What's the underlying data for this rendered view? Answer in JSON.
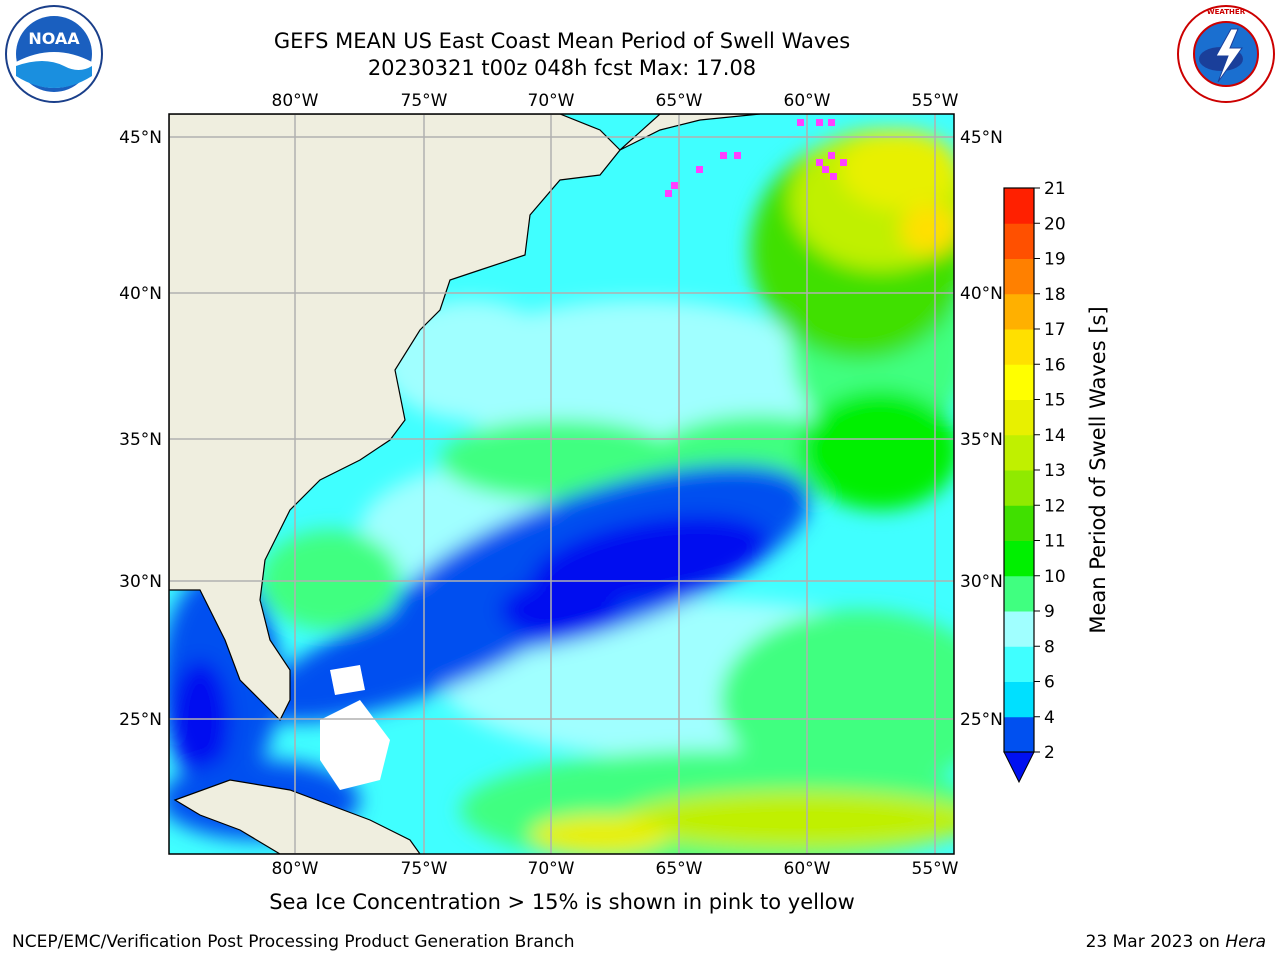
{
  "title": {
    "line1": "GEFS MEAN US East Coast Mean Period of Swell Waves",
    "line2": "20230321 t00z 048h fcst   Max: 17.08"
  },
  "logos": {
    "left": {
      "icon": "noaa-logo",
      "text": "NOAA"
    },
    "right": {
      "icon": "nws-logo",
      "text": "NATIONAL WEATHER SERVICE"
    }
  },
  "map": {
    "lon_labels": [
      "80°W",
      "75°W",
      "70°W",
      "65°W",
      "60°W",
      "55°W"
    ],
    "lat_labels": [
      "45°N",
      "40°N",
      "35°N",
      "30°N",
      "25°N"
    ],
    "extent": {
      "lon": [
        -85,
        -54.5
      ],
      "lat": [
        20.5,
        46
      ]
    },
    "land_color": "#efeedf",
    "grid_color": "#b0b0b0"
  },
  "colorbar": {
    "title": "Mean Period of Swell Waves [s]",
    "ticks": [
      "2",
      "4",
      "6",
      "8",
      "9",
      "10",
      "11",
      "12",
      "13",
      "14",
      "15",
      "16",
      "17",
      "18",
      "19",
      "20",
      "21"
    ],
    "colors": [
      "#0050f0",
      "#00e0ff",
      "#40ffff",
      "#a0ffff",
      "#40ff80",
      "#00f000",
      "#40e000",
      "#90ea00",
      "#c0f000",
      "#e8f000",
      "#ffff00",
      "#ffe000",
      "#ffb000",
      "#ff8000",
      "#ff5000",
      "#ff2000",
      "#ff0000"
    ],
    "under_color": "#0010f0"
  },
  "note": "Sea Ice Concentration > 15% is shown in pink to yellow",
  "footer": {
    "left": "NCEP/EMC/Verification Post Processing Product Generation Branch",
    "date": "23 Mar 2023 on",
    "machine": "Hera"
  }
}
